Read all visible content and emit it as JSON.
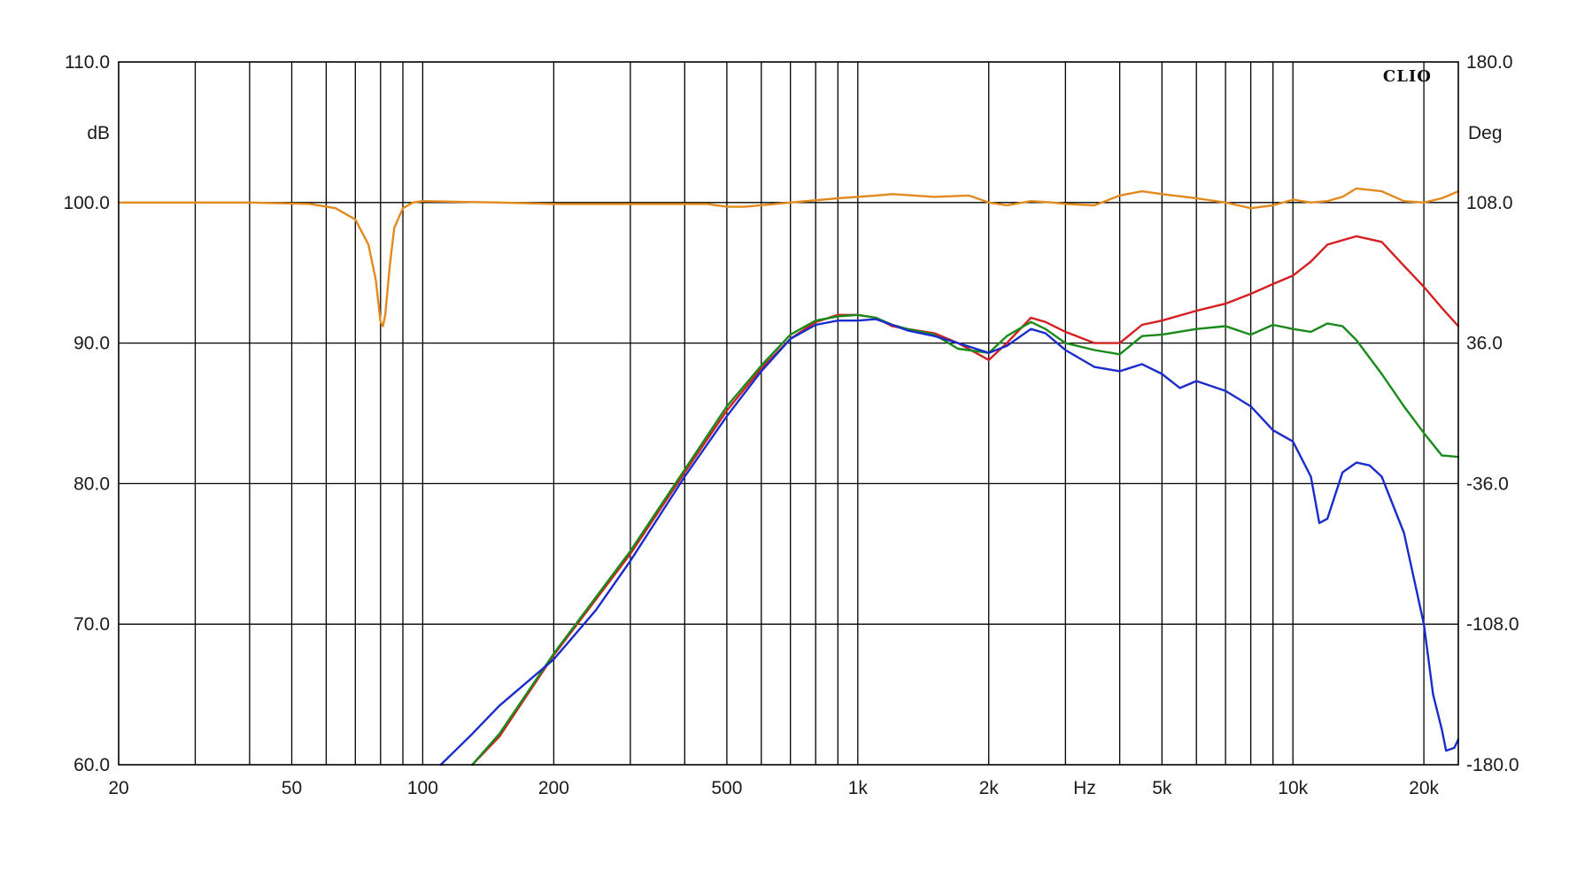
{
  "chart_data": {
    "type": "line",
    "brand": "CLIO",
    "xlabel": "Hz",
    "ylabel_left": "dB",
    "ylabel_right": "Deg",
    "x_scale": "log",
    "xlim": [
      20,
      24000
    ],
    "ylim": [
      60,
      110
    ],
    "y2lim": [
      -180,
      180
    ],
    "grid": true,
    "x_ticks": [
      {
        "label": "20",
        "value": 20
      },
      {
        "label": "50",
        "value": 50
      },
      {
        "label": "100",
        "value": 100
      },
      {
        "label": "200",
        "value": 200
      },
      {
        "label": "500",
        "value": 500
      },
      {
        "label": "1k",
        "value": 1000
      },
      {
        "label": "2k",
        "value": 2000
      },
      {
        "label": "5k",
        "value": 5000
      },
      {
        "label": "10k",
        "value": 10000
      },
      {
        "label": "20k",
        "value": 20000
      }
    ],
    "y_ticks_left": [
      "110.0",
      "100.0",
      "90.0",
      "80.0",
      "70.0",
      "60.0"
    ],
    "y_ticks_right": [
      "180.0",
      "108.0",
      "36.0",
      "-36.0",
      "-108.0",
      "-180.0"
    ],
    "series": [
      {
        "color": "#e38a1f",
        "x": [
          20,
          40,
          55,
          63,
          70,
          75,
          78,
          80,
          81,
          82,
          84,
          86,
          90,
          95,
          100,
          150,
          200,
          300,
          450,
          500,
          550,
          700,
          900,
          1100,
          1200,
          1500,
          1800,
          2000,
          2200,
          2500,
          2800,
          3000,
          3500,
          4000,
          4500,
          5000,
          6000,
          7000,
          8000,
          9000,
          10000,
          11000,
          12000,
          13000,
          14000,
          16000,
          18000,
          20000,
          22000,
          24000
        ],
        "y": [
          100.0,
          100.0,
          99.9,
          99.6,
          98.8,
          97.0,
          94.5,
          91.5,
          91.2,
          92.0,
          95.5,
          98.2,
          99.6,
          100.0,
          100.1,
          100.0,
          99.9,
          99.9,
          99.9,
          99.7,
          99.7,
          100.0,
          100.3,
          100.5,
          100.6,
          100.4,
          100.5,
          100.0,
          99.8,
          100.1,
          100.0,
          99.9,
          99.8,
          100.5,
          100.8,
          100.6,
          100.3,
          100.0,
          99.6,
          99.8,
          100.2,
          100.0,
          100.1,
          100.4,
          101.0,
          100.8,
          100.1,
          100.0,
          100.3,
          100.8
        ]
      },
      {
        "color": "#d42020",
        "x": [
          130,
          150,
          200,
          300,
          400,
          500,
          600,
          700,
          800,
          900,
          1000,
          1100,
          1200,
          1300,
          1500,
          1700,
          2000,
          2200,
          2500,
          2700,
          3000,
          3500,
          4000,
          4500,
          5000,
          6000,
          7000,
          8000,
          9000,
          10000,
          11000,
          12000,
          14000,
          16000,
          18000,
          20000,
          22000,
          24000
        ],
        "y": [
          60.0,
          62.0,
          67.8,
          75.0,
          80.8,
          85.2,
          88.2,
          90.3,
          91.5,
          92.0,
          92.0,
          91.8,
          91.2,
          91.0,
          90.7,
          90.0,
          88.8,
          90.0,
          91.8,
          91.5,
          90.8,
          90.0,
          90.0,
          91.3,
          91.6,
          92.3,
          92.8,
          93.5,
          94.2,
          94.8,
          95.8,
          97.0,
          97.6,
          97.2,
          95.5,
          94.0,
          92.5,
          91.2
        ]
      },
      {
        "color": "#1a8a1a",
        "x": [
          130,
          150,
          200,
          300,
          400,
          500,
          600,
          700,
          800,
          900,
          1000,
          1100,
          1200,
          1300,
          1500,
          1700,
          2000,
          2200,
          2500,
          2700,
          3000,
          3500,
          4000,
          4500,
          5000,
          6000,
          7000,
          8000,
          9000,
          10000,
          11000,
          12000,
          13000,
          14000,
          16000,
          18000,
          20000,
          22000,
          24000
        ],
        "y": [
          60.0,
          62.2,
          67.9,
          75.2,
          81.0,
          85.5,
          88.4,
          90.6,
          91.6,
          91.9,
          92.0,
          91.8,
          91.3,
          91.0,
          90.6,
          89.6,
          89.3,
          90.5,
          91.5,
          91.0,
          90.0,
          89.5,
          89.2,
          90.5,
          90.6,
          91.0,
          91.2,
          90.6,
          91.3,
          91.0,
          90.8,
          91.4,
          91.2,
          90.2,
          87.8,
          85.5,
          83.6,
          82.0,
          81.9
        ]
      },
      {
        "color": "#1a2ccc",
        "x": [
          110,
          130,
          150,
          200,
          250,
          300,
          400,
          500,
          600,
          700,
          800,
          900,
          1000,
          1100,
          1200,
          1300,
          1500,
          1700,
          2000,
          2200,
          2500,
          2700,
          3000,
          3500,
          4000,
          4500,
          5000,
          5500,
          6000,
          7000,
          8000,
          9000,
          10000,
          11000,
          11500,
          12000,
          13000,
          14000,
          15000,
          16000,
          18000,
          20000,
          21000,
          22000,
          22500,
          23500,
          24000
        ],
        "y": [
          60.0,
          62.2,
          64.2,
          67.5,
          71.0,
          74.5,
          80.5,
          84.8,
          88.0,
          90.3,
          91.3,
          91.6,
          91.6,
          91.7,
          91.3,
          90.9,
          90.5,
          90.0,
          89.3,
          89.8,
          91.0,
          90.7,
          89.5,
          88.3,
          88.0,
          88.5,
          87.8,
          86.8,
          87.3,
          86.6,
          85.5,
          83.8,
          83.0,
          80.5,
          77.2,
          77.5,
          80.8,
          81.5,
          81.3,
          80.5,
          76.5,
          70.0,
          65.0,
          62.5,
          61.0,
          61.2,
          61.8
        ]
      }
    ]
  }
}
